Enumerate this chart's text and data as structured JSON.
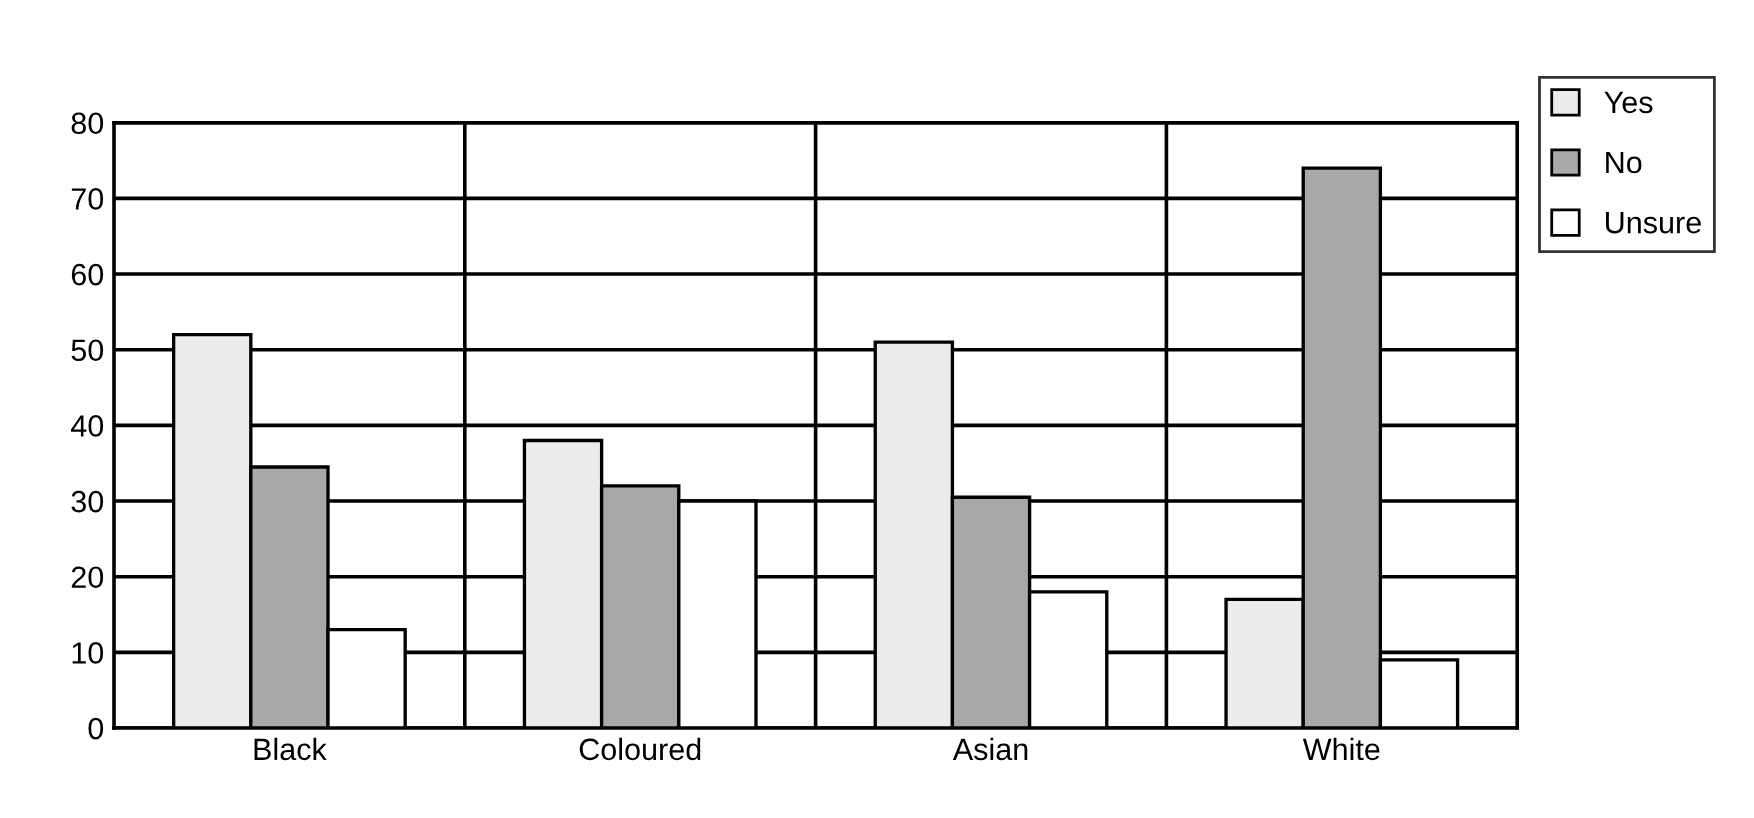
{
  "chart_data": {
    "type": "bar",
    "categories": [
      "Black",
      "Coloured",
      "Asian",
      "White"
    ],
    "series": [
      {
        "name": "Yes",
        "color": "#ececec",
        "values": [
          52,
          38,
          51,
          17
        ]
      },
      {
        "name": "No",
        "color": "#a8a8a8",
        "values": [
          34.5,
          32,
          30.5,
          74
        ]
      },
      {
        "name": "Unsure",
        "color": "#ffffff",
        "values": [
          13,
          30,
          18,
          9
        ]
      }
    ],
    "ylim": [
      0,
      80
    ],
    "yticks": [
      0,
      10,
      20,
      30,
      40,
      50,
      60,
      70,
      80
    ],
    "grid": true,
    "legend": "top right"
  }
}
